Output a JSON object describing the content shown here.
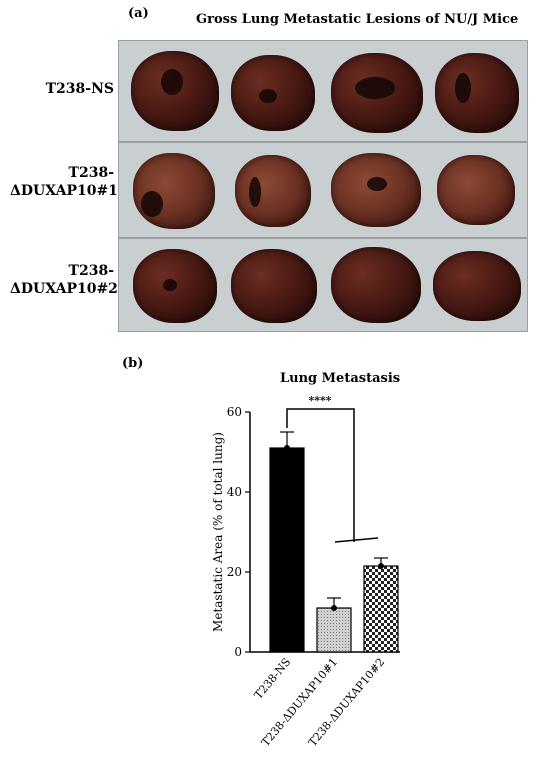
{
  "panel_a": {
    "label": "(a)",
    "title": "Gross Lung Metastatic Lesions of NU/J Mice",
    "rows": [
      {
        "label_lines": [
          "T238-NS"
        ]
      },
      {
        "label_lines": [
          "T238-",
          "ΔDUXAP10#1"
        ]
      },
      {
        "label_lines": [
          "T238-",
          "ΔDUXAP10#2"
        ]
      }
    ]
  },
  "panel_b": {
    "label": "(b)",
    "significance": "****"
  },
  "chart_data": {
    "type": "bar",
    "title": "Lung Metastasis",
    "ylabel": "Metastatic Area (% of total lung)",
    "xlabel": "",
    "categories": [
      "T238-NS",
      "T238-ΔDUXAP10#1",
      "T238-ΔDUXAP10#2"
    ],
    "values": [
      51,
      11,
      21.5
    ],
    "errors": [
      4,
      2.5,
      2
    ],
    "ylim": [
      0,
      60
    ],
    "yticks": [
      0,
      20,
      40,
      60
    ],
    "bar_fills": [
      "solid-black",
      "light-gray-pattern",
      "checker-pattern"
    ],
    "significance_label": "****",
    "colors": {
      "bar1": "#000000",
      "bar2": "#bdbdbd",
      "bar3": "#444444"
    }
  }
}
